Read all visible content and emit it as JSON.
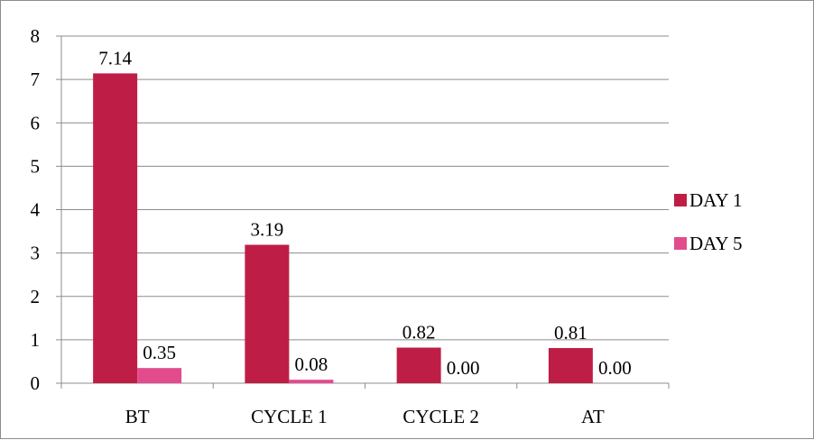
{
  "chart_data": {
    "type": "bar",
    "title": "",
    "xlabel": "",
    "ylabel": "",
    "categories": [
      "BT",
      "CYCLE 1",
      "CYCLE 2",
      "AT"
    ],
    "series": [
      {
        "name": "DAY 1",
        "color": "#be1e45",
        "values": [
          7.14,
          3.19,
          0.82,
          0.81
        ],
        "labels": [
          "7.14",
          "3.19",
          "0.82",
          "0.81"
        ]
      },
      {
        "name": "DAY 5",
        "color": "#e34c8c",
        "values": [
          0.35,
          0.08,
          0.0,
          0.0
        ],
        "labels": [
          "0.35",
          "0.08",
          "0.00",
          "0.00"
        ]
      }
    ],
    "ylim": [
      0,
      8
    ],
    "yticks": [
      "0",
      "1",
      "2",
      "3",
      "4",
      "5",
      "6",
      "7",
      "8"
    ],
    "grid": true,
    "legend": "right"
  }
}
